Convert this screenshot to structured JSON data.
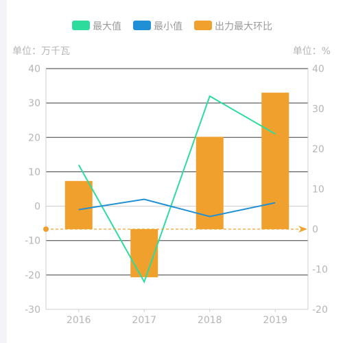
{
  "chart_data": {
    "type": "bar+line",
    "categories": [
      "2016",
      "2017",
      "2018",
      "2019"
    ],
    "legend": {
      "position": "top-center",
      "items": [
        {
          "label": "最大值",
          "color": "#2ddc9d",
          "kind": "line"
        },
        {
          "label": "最小值",
          "color": "#1f8fd6",
          "kind": "line"
        },
        {
          "label": "出力最大环比",
          "color": "#f0a02c",
          "kind": "bar"
        }
      ]
    },
    "left_axis": {
      "unit_label": "单位：万千瓦",
      "min": -30,
      "max": 40,
      "ticks": [
        40,
        30,
        20,
        10,
        0,
        -10,
        -20,
        -30
      ]
    },
    "right_axis": {
      "unit_label": "单位：%",
      "min": -20,
      "max": 40,
      "ticks": [
        40,
        30,
        20,
        10,
        0,
        -10,
        -20
      ]
    },
    "series": [
      {
        "name": "最大值",
        "axis": "left",
        "type": "line",
        "color": "#2ddc9d",
        "values": [
          12,
          -22,
          32,
          21
        ]
      },
      {
        "name": "最小值",
        "axis": "left",
        "type": "line",
        "color": "#1f8fd6",
        "values": [
          -1,
          2,
          -3,
          1
        ]
      },
      {
        "name": "出力最大环比",
        "axis": "right",
        "type": "bar",
        "color": "#f0a02c",
        "values": [
          12,
          -12,
          23,
          34
        ]
      }
    ],
    "reference_line": {
      "axis": "right",
      "value": 0,
      "color": "#f0a02c",
      "style": "dashed-arrow"
    },
    "grid": true
  }
}
